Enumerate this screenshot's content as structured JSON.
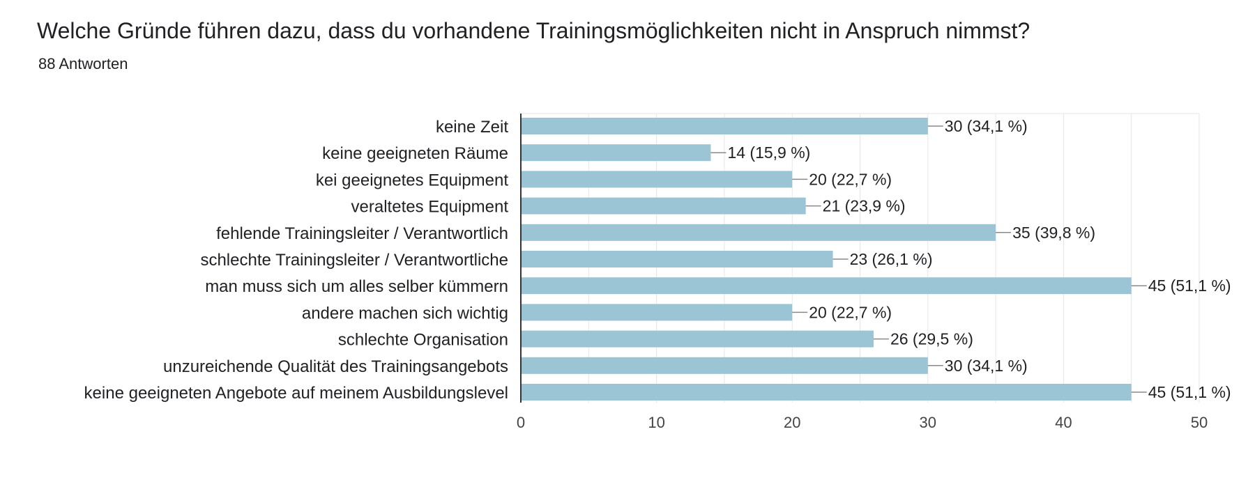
{
  "header": {
    "title": "Welche Gründe führen dazu, dass du vorhandene Trainingsmöglichkeiten nicht in Anspruch  nimmst?",
    "responses": "88 Antworten"
  },
  "colors": {
    "bar": "#9bc4d4",
    "grid": "#e6e6e6",
    "axis": "#333333",
    "connector": "#888888"
  },
  "chart_data": {
    "type": "bar",
    "orientation": "horizontal",
    "categories": [
      "keine Zeit",
      "keine geeigneten Räume",
      "kei geeignetes Equipment",
      "veraltetes Equipment",
      "fehlende Trainingsleiter / Verantwortlich",
      "schlechte Trainingsleiter / Verantwortliche",
      "man muss sich um alles selber kümmern",
      "andere machen sich wichtig",
      "schlechte Organisation",
      "unzureichende Qualität des Trainingsangebots",
      "keine geeigneten Angebote auf meinem Ausbildungslevel"
    ],
    "values": [
      30,
      14,
      20,
      21,
      35,
      23,
      45,
      20,
      26,
      30,
      45
    ],
    "value_labels": [
      "30 (34,1 %)",
      "14 (15,9 %)",
      "20 (22,7 %)",
      "21 (23,9 %)",
      "35 (39,8 %)",
      "23 (26,1 %)",
      "45 (51,1 %)",
      "20 (22,7 %)",
      "26 (29,5 %)",
      "30 (34,1 %)",
      "45 (51,1 %)"
    ],
    "xlim": [
      0,
      50
    ],
    "xticks": [
      0,
      10,
      20,
      30,
      40,
      50
    ],
    "grid": true
  }
}
